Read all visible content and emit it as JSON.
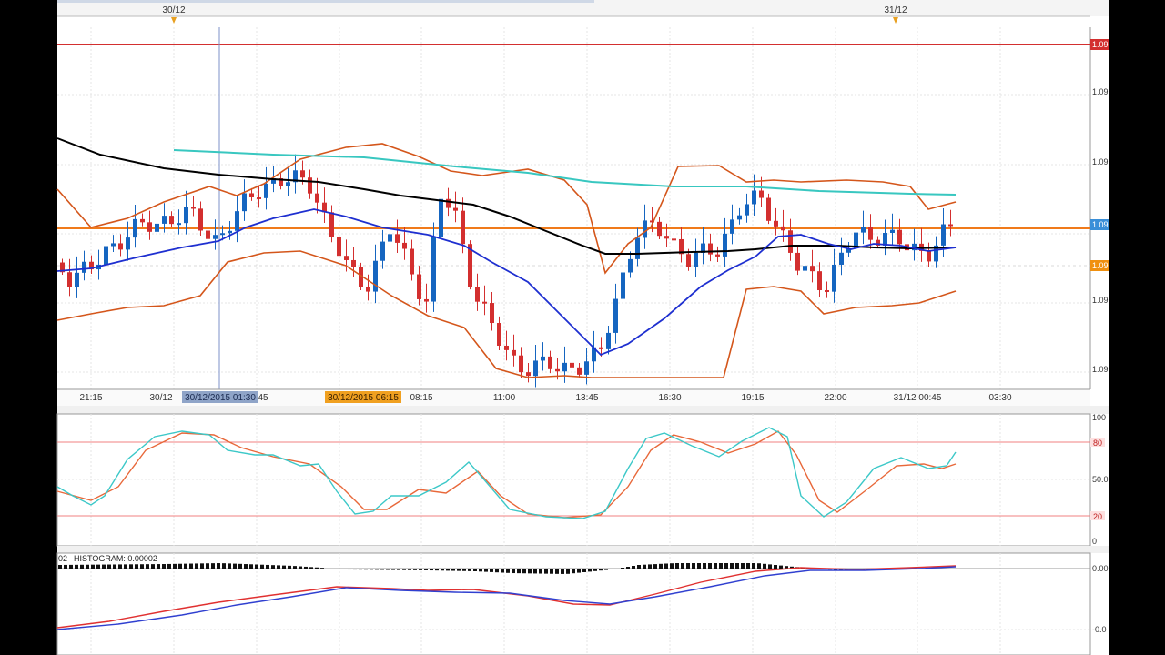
{
  "top_axis": {
    "marker_left": "30/12",
    "marker_right": "31/12"
  },
  "price_axis": {
    "labels": [
      "1.09",
      "1.09",
      "1.09",
      "1.09",
      "1.09",
      "1.09",
      "1.09",
      "1.09"
    ],
    "badge_red": "1.09",
    "badge_blue": "1.09",
    "badge_orange": "1.09"
  },
  "time_axis": {
    "ticks": [
      "21:15",
      "30/12",
      "45",
      "08:15",
      "11:00",
      "13:45",
      "16:30",
      "19:15",
      "22:00",
      "31/12 00:45",
      "03:30"
    ],
    "cursor_label": "30/12/2015 01:30",
    "highlight_label": "30/12/2015 06:15"
  },
  "stochastic": {
    "levels": [
      "100",
      "80",
      "50.0",
      "20",
      "0"
    ]
  },
  "macd": {
    "header_prefix": "02",
    "header": "HISTOGRAM: 0.00002",
    "levels": [
      "0.00",
      "-0.0"
    ]
  },
  "colors": {
    "candle_up": "#1565c0",
    "candle_down": "#d32f2f",
    "bollinger": "#d4561b",
    "ma_black": "#000000",
    "ma_blue": "#1e2fd0",
    "ma_teal": "#38c7c0",
    "resistance_red": "#d32f2f",
    "horizontal_orange": "#f07a1a",
    "stoch_k": "#3cc8c8",
    "stoch_d": "#e8683a",
    "macd_line": "#e03030",
    "signal_line": "#3040d0"
  }
}
